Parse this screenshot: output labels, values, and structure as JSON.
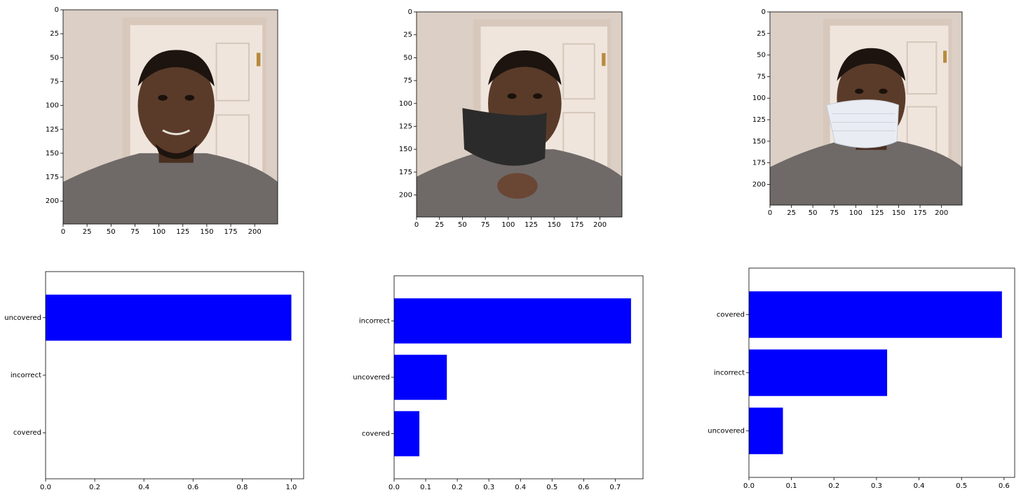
{
  "colors": {
    "bar": "#0000ff",
    "axes": "#000000",
    "wall": "#dccfc5",
    "door": "#efe5dc",
    "skin": "#5a3b29",
    "hoodie": "#6f6a68",
    "black_mask": "#2b2b2b",
    "surgical_mask": "#e9edf3"
  },
  "images": [
    {
      "mask": "none",
      "xlim": [
        0,
        224
      ],
      "ylim": [
        0,
        224
      ]
    },
    {
      "mask": "black-chin",
      "xlim": [
        0,
        224
      ],
      "ylim": [
        0,
        224
      ]
    },
    {
      "mask": "surgical-covered",
      "xlim": [
        0,
        224
      ],
      "ylim": [
        0,
        224
      ]
    }
  ],
  "chart_data": [
    {
      "type": "bar",
      "orientation": "horizontal",
      "categories": [
        "uncovered",
        "incorrect",
        "covered"
      ],
      "values": [
        1.0,
        0.0,
        0.0
      ],
      "xlim": [
        0,
        1.05
      ],
      "xticks": [
        0.0,
        0.2,
        0.4,
        0.6,
        0.8,
        1.0
      ],
      "xtick_labels": [
        "0.0",
        "0.2",
        "0.4",
        "0.6",
        "0.8",
        "1.0"
      ],
      "grid": false
    },
    {
      "type": "bar",
      "orientation": "horizontal",
      "categories": [
        "incorrect",
        "uncovered",
        "covered"
      ],
      "values": [
        0.75,
        0.167,
        0.08
      ],
      "xlim": [
        0,
        0.788
      ],
      "xticks": [
        0.0,
        0.1,
        0.2,
        0.3,
        0.4,
        0.5,
        0.6,
        0.7
      ],
      "xtick_labels": [
        "0.0",
        "0.1",
        "0.2",
        "0.3",
        "0.4",
        "0.5",
        "0.6",
        "0.7"
      ],
      "grid": false
    },
    {
      "type": "bar",
      "orientation": "horizontal",
      "categories": [
        "covered",
        "incorrect",
        "uncovered"
      ],
      "values": [
        0.595,
        0.325,
        0.08
      ],
      "xlim": [
        0,
        0.625
      ],
      "xticks": [
        0.0,
        0.1,
        0.2,
        0.3,
        0.4,
        0.5,
        0.6
      ],
      "xtick_labels": [
        "0.0",
        "0.1",
        "0.2",
        "0.3",
        "0.4",
        "0.5",
        "0.6"
      ],
      "grid": false
    }
  ]
}
